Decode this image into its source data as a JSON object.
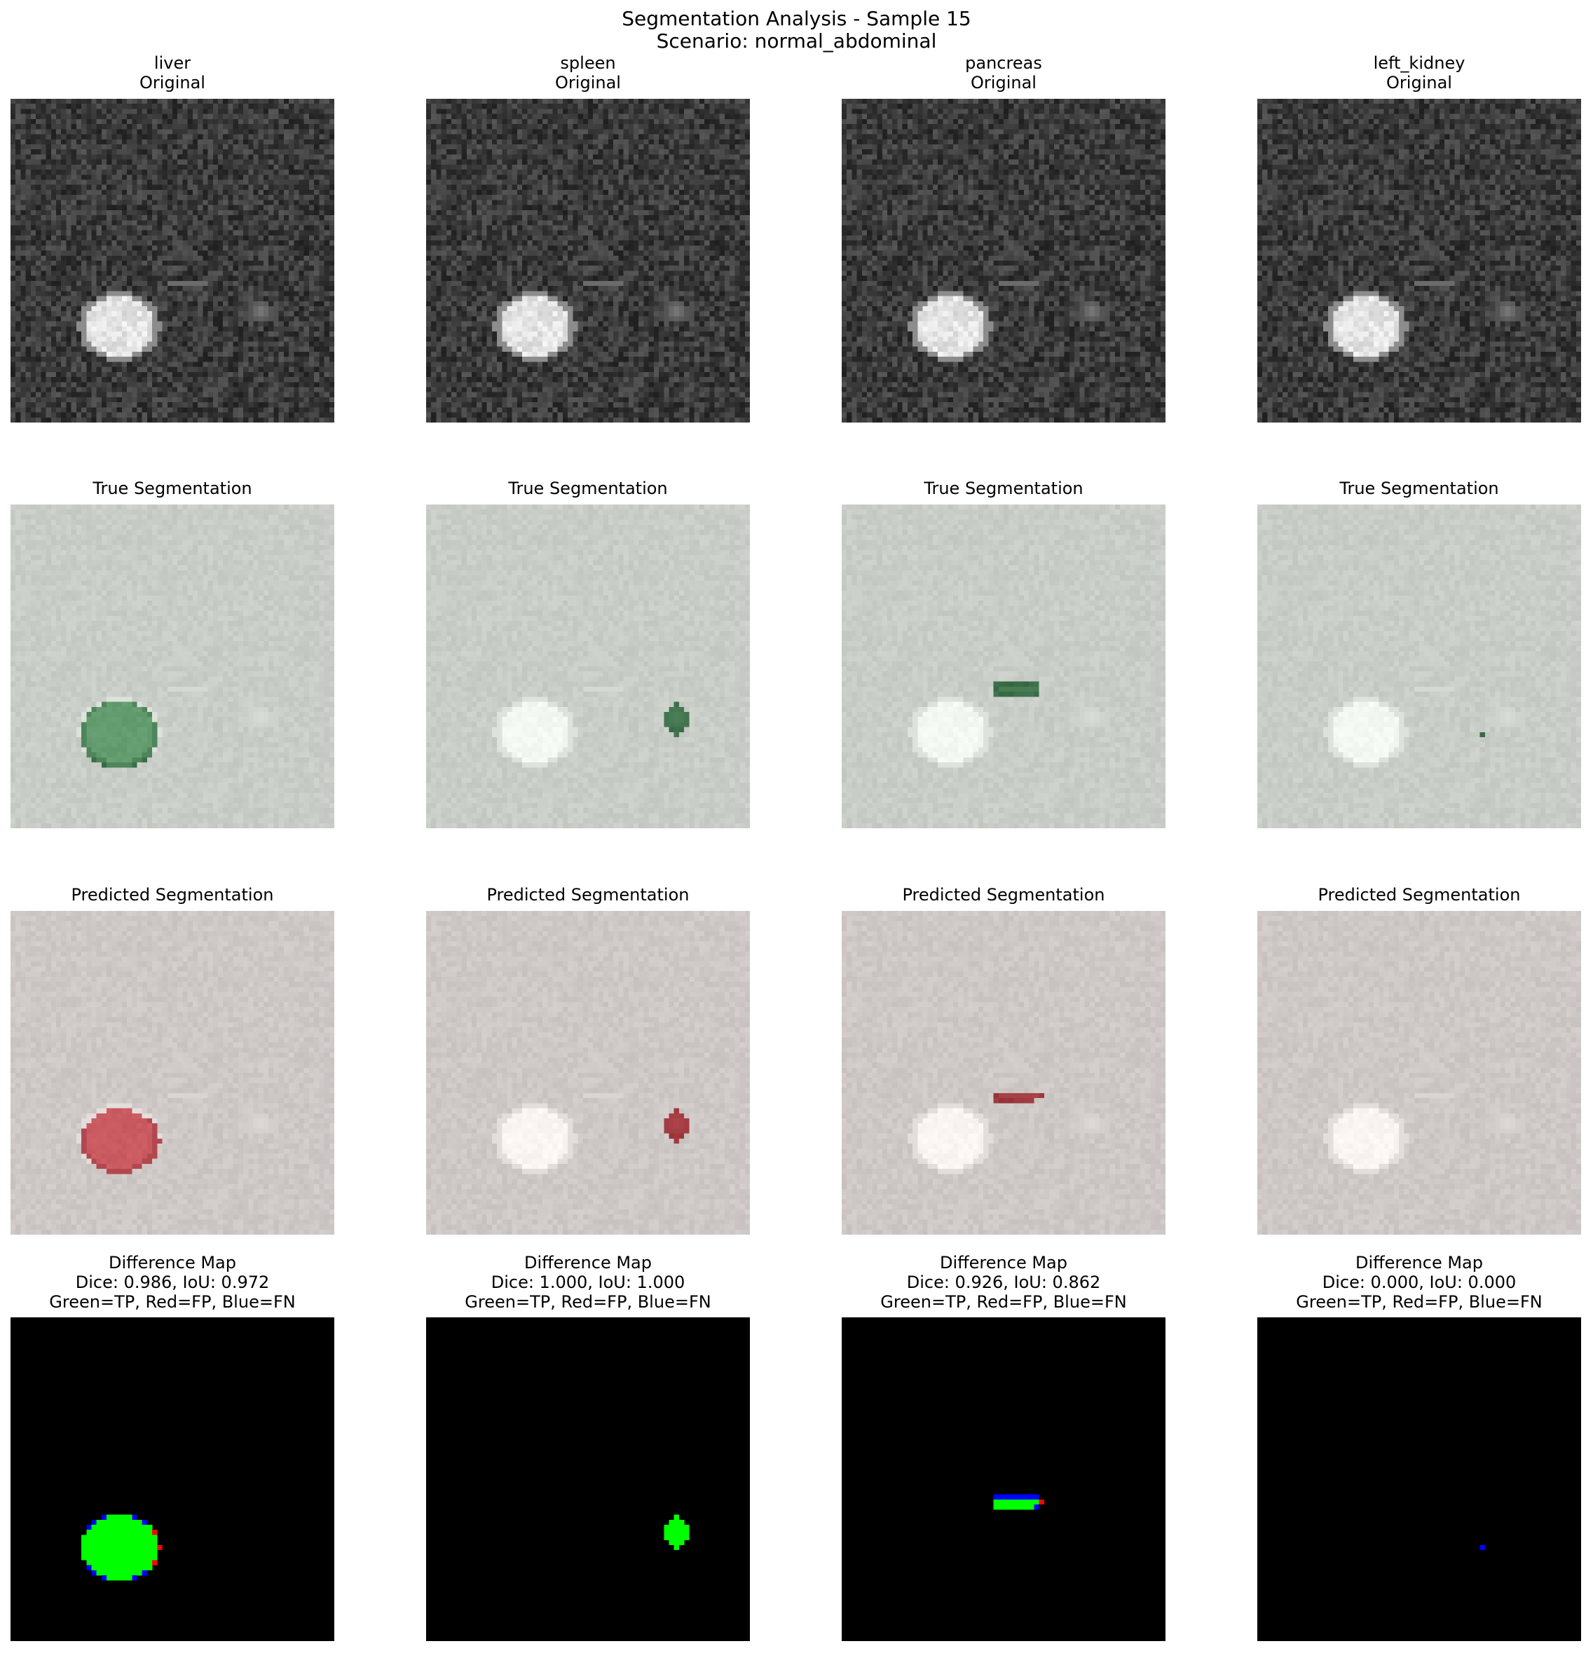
{
  "figure": {
    "title": "Segmentation Analysis - Sample 15",
    "subtitle": "Scenario: normal_abdominal"
  },
  "row_titles": {
    "original": "Original",
    "true": "True Segmentation",
    "predicted": "Predicted Segmentation",
    "diff": "Difference Map",
    "legend": "Green=TP, Red=FP, Blue=FN"
  },
  "columns": [
    {
      "organ": "liver",
      "metrics": "Dice: 0.986, IoU: 0.972",
      "dice": 0.986,
      "iou": 0.972
    },
    {
      "organ": "spleen",
      "metrics": "Dice: 1.000, IoU: 1.000",
      "dice": 1.0,
      "iou": 1.0
    },
    {
      "organ": "pancreas",
      "metrics": "Dice: 0.926, IoU: 0.862",
      "dice": 0.926,
      "iou": 0.862
    },
    {
      "organ": "left_kidney",
      "metrics": "Dice: 0.000, IoU: 0.000",
      "dice": 0.0,
      "iou": 0.0
    }
  ],
  "colors": {
    "tp": "#00ff00",
    "fp": "#ff0000",
    "fn": "#0000ff",
    "true_overlay": "#2e5e3a",
    "pred_overlay": "#8b2a30",
    "diff_background": "#000000"
  }
}
